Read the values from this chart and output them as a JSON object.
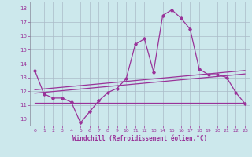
{
  "xlabel": "Windchill (Refroidissement éolien,°C)",
  "bg_color": "#cce8ec",
  "grid_color": "#aabbc8",
  "line_color": "#993399",
  "x_hours": [
    0,
    1,
    2,
    3,
    4,
    5,
    6,
    7,
    8,
    9,
    10,
    11,
    12,
    13,
    14,
    15,
    16,
    17,
    18,
    19,
    20,
    21,
    22,
    23
  ],
  "main_y": [
    13.5,
    11.8,
    11.5,
    11.5,
    11.2,
    9.7,
    10.5,
    11.3,
    11.9,
    12.2,
    12.9,
    15.4,
    15.8,
    13.4,
    17.5,
    17.9,
    17.3,
    16.5,
    13.6,
    13.2,
    13.2,
    13.0,
    11.9,
    11.1
  ],
  "flat_y_start": 11.15,
  "flat_y_end": 11.15,
  "line2_y_start": 11.85,
  "line2_y_end": 13.25,
  "line3_y_start": 12.1,
  "line3_y_end": 13.5,
  "ylim": [
    9.5,
    18.5
  ],
  "xlim": [
    -0.5,
    23.5
  ],
  "yticks": [
    10,
    11,
    12,
    13,
    14,
    15,
    16,
    17,
    18
  ]
}
